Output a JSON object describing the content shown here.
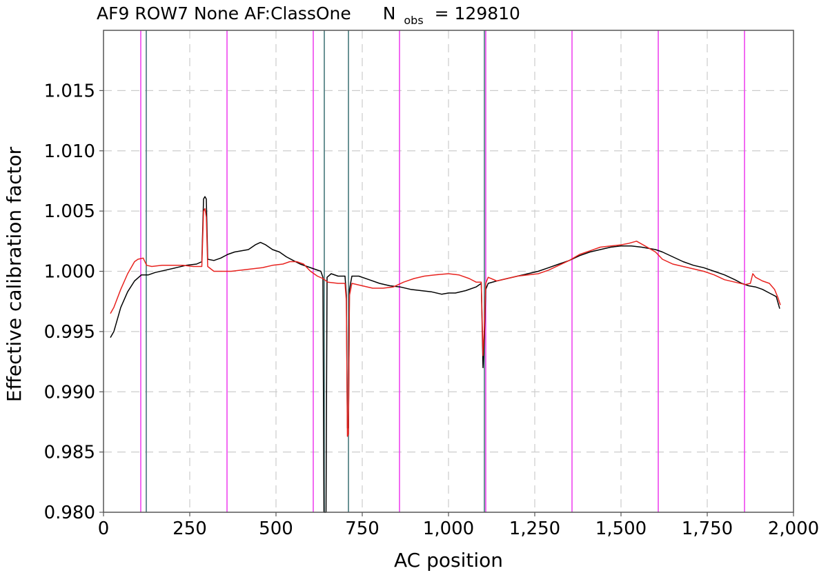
{
  "chart_data": {
    "type": "line",
    "title": "AF9 ROW7 None AF:ClassOne",
    "nobs_symbol": "N",
    "nobs_subscript": "obs",
    "nobs_equals": "= 129810",
    "xlabel": "AC position",
    "ylabel": "Effective calibration factor",
    "xlim": [
      0,
      2000
    ],
    "ylim": [
      0.98,
      1.02
    ],
    "x_ticks": [
      0,
      250,
      500,
      750,
      1000,
      1250,
      1500,
      1750,
      2000
    ],
    "x_tick_labels": [
      "0",
      "250",
      "500",
      "750",
      "1,000",
      "1,250",
      "1,500",
      "1,750",
      "2,000"
    ],
    "y_ticks": [
      0.98,
      0.985,
      0.99,
      0.995,
      1.0,
      1.005,
      1.01,
      1.015
    ],
    "y_tick_labels": [
      "0.980",
      "0.985",
      "0.990",
      "0.995",
      "1.000",
      "1.005",
      "1.010",
      "1.015"
    ],
    "grid": true,
    "legend": false,
    "vertical_lines": {
      "magenta": {
        "color": "#ee44ee",
        "x": [
          108,
          358,
          608,
          858,
          1108,
          1358,
          1608,
          1858
        ]
      },
      "teal": {
        "color": "#44777a",
        "x": [
          124,
          640,
          710,
          1104
        ]
      }
    },
    "series": [
      {
        "color": "#000000",
        "points": [
          [
            20,
            0.9945
          ],
          [
            30,
            0.995
          ],
          [
            50,
            0.997
          ],
          [
            70,
            0.9983
          ],
          [
            90,
            0.9992
          ],
          [
            110,
            0.9997
          ],
          [
            130,
            0.9997
          ],
          [
            150,
            0.9999
          ],
          [
            180,
            1.0001
          ],
          [
            210,
            1.0003
          ],
          [
            240,
            1.0005
          ],
          [
            270,
            1.0006
          ],
          [
            285,
            1.0008
          ],
          [
            290,
            1.006
          ],
          [
            294,
            1.0062
          ],
          [
            298,
            1.006
          ],
          [
            302,
            1.001
          ],
          [
            320,
            1.0009
          ],
          [
            340,
            1.0011
          ],
          [
            360,
            1.0014
          ],
          [
            380,
            1.0016
          ],
          [
            400,
            1.0017
          ],
          [
            420,
            1.0018
          ],
          [
            440,
            1.0022
          ],
          [
            455,
            1.0024
          ],
          [
            470,
            1.0022
          ],
          [
            490,
            1.0018
          ],
          [
            510,
            1.0016
          ],
          [
            530,
            1.0012
          ],
          [
            550,
            1.0009
          ],
          [
            570,
            1.0006
          ],
          [
            590,
            1.0004
          ],
          [
            610,
            1.0002
          ],
          [
            630,
            1.0
          ],
          [
            636,
            0.9995
          ],
          [
            639,
            0.98
          ],
          [
            645,
            0.98
          ],
          [
            648,
            0.9995
          ],
          [
            660,
            0.9998
          ],
          [
            680,
            0.9996
          ],
          [
            700,
            0.9996
          ],
          [
            704,
            0.998
          ],
          [
            707,
            0.987
          ],
          [
            710,
            0.987
          ],
          [
            713,
            0.9985
          ],
          [
            720,
            0.9996
          ],
          [
            740,
            0.9996
          ],
          [
            770,
            0.9993
          ],
          [
            800,
            0.999
          ],
          [
            830,
            0.9988
          ],
          [
            860,
            0.9987
          ],
          [
            890,
            0.9985
          ],
          [
            920,
            0.9984
          ],
          [
            950,
            0.9983
          ],
          [
            980,
            0.9981
          ],
          [
            1000,
            0.9982
          ],
          [
            1020,
            0.9982
          ],
          [
            1050,
            0.9984
          ],
          [
            1080,
            0.9987
          ],
          [
            1095,
            0.999
          ],
          [
            1100,
            0.992
          ],
          [
            1104,
            0.9945
          ],
          [
            1108,
            0.9985
          ],
          [
            1115,
            0.999
          ],
          [
            1140,
            0.9992
          ],
          [
            1170,
            0.9994
          ],
          [
            1200,
            0.9996
          ],
          [
            1230,
            0.9998
          ],
          [
            1260,
            1.0
          ],
          [
            1290,
            1.0003
          ],
          [
            1320,
            1.0006
          ],
          [
            1350,
            1.0009
          ],
          [
            1380,
            1.0013
          ],
          [
            1410,
            1.0016
          ],
          [
            1440,
            1.0018
          ],
          [
            1470,
            1.002
          ],
          [
            1500,
            1.0021
          ],
          [
            1530,
            1.0021
          ],
          [
            1560,
            1.002
          ],
          [
            1580,
            1.0019
          ],
          [
            1600,
            1.0018
          ],
          [
            1620,
            1.0016
          ],
          [
            1650,
            1.0012
          ],
          [
            1680,
            1.0008
          ],
          [
            1710,
            1.0005
          ],
          [
            1740,
            1.0003
          ],
          [
            1770,
            1.0
          ],
          [
            1800,
            0.9997
          ],
          [
            1830,
            0.9993
          ],
          [
            1850,
            0.999
          ],
          [
            1870,
            0.9988
          ],
          [
            1890,
            0.9987
          ],
          [
            1910,
            0.9985
          ],
          [
            1930,
            0.9982
          ],
          [
            1950,
            0.9979
          ],
          [
            1960,
            0.9969
          ]
        ]
      },
      {
        "color": "#e8221e",
        "points": [
          [
            20,
            0.9965
          ],
          [
            30,
            0.997
          ],
          [
            50,
            0.9985
          ],
          [
            70,
            0.9998
          ],
          [
            90,
            1.0008
          ],
          [
            100,
            1.001
          ],
          [
            115,
            1.0011
          ],
          [
            125,
            1.0005
          ],
          [
            140,
            1.0004
          ],
          [
            170,
            1.0005
          ],
          [
            200,
            1.0005
          ],
          [
            230,
            1.0005
          ],
          [
            260,
            1.0004
          ],
          [
            285,
            1.0004
          ],
          [
            290,
            1.005
          ],
          [
            294,
            1.0052
          ],
          [
            298,
            1.0045
          ],
          [
            302,
            1.0004
          ],
          [
            320,
            1.0
          ],
          [
            345,
            1.0
          ],
          [
            370,
            1.0
          ],
          [
            400,
            1.0001
          ],
          [
            430,
            1.0002
          ],
          [
            460,
            1.0003
          ],
          [
            490,
            1.0005
          ],
          [
            520,
            1.0006
          ],
          [
            540,
            1.0008
          ],
          [
            560,
            1.0008
          ],
          [
            580,
            1.0006
          ],
          [
            600,
            1.0
          ],
          [
            620,
            0.9996
          ],
          [
            636,
            0.9994
          ],
          [
            650,
            0.9991
          ],
          [
            680,
            0.999
          ],
          [
            700,
            0.999
          ],
          [
            704,
            0.9975
          ],
          [
            707,
            0.9863
          ],
          [
            710,
            0.9865
          ],
          [
            713,
            0.998
          ],
          [
            720,
            0.999
          ],
          [
            750,
            0.9988
          ],
          [
            780,
            0.9986
          ],
          [
            810,
            0.9986
          ],
          [
            840,
            0.9987
          ],
          [
            870,
            0.9991
          ],
          [
            900,
            0.9994
          ],
          [
            930,
            0.9996
          ],
          [
            960,
            0.9997
          ],
          [
            1000,
            0.9998
          ],
          [
            1030,
            0.9997
          ],
          [
            1060,
            0.9994
          ],
          [
            1080,
            0.9991
          ],
          [
            1095,
            0.9991
          ],
          [
            1100,
            0.993
          ],
          [
            1104,
            0.9955
          ],
          [
            1108,
            0.999
          ],
          [
            1115,
            0.9995
          ],
          [
            1140,
            0.9992
          ],
          [
            1170,
            0.9994
          ],
          [
            1200,
            0.9996
          ],
          [
            1230,
            0.9997
          ],
          [
            1260,
            0.9998
          ],
          [
            1290,
            1.0001
          ],
          [
            1320,
            1.0005
          ],
          [
            1350,
            1.0009
          ],
          [
            1380,
            1.0014
          ],
          [
            1410,
            1.0017
          ],
          [
            1440,
            1.002
          ],
          [
            1470,
            1.0021
          ],
          [
            1500,
            1.0022
          ],
          [
            1520,
            1.0023
          ],
          [
            1545,
            1.0025
          ],
          [
            1570,
            1.0021
          ],
          [
            1600,
            1.0016
          ],
          [
            1620,
            1.001
          ],
          [
            1650,
            1.0006
          ],
          [
            1680,
            1.0004
          ],
          [
            1710,
            1.0002
          ],
          [
            1740,
            1.0
          ],
          [
            1770,
            0.9997
          ],
          [
            1800,
            0.9993
          ],
          [
            1830,
            0.9991
          ],
          [
            1860,
            0.9989
          ],
          [
            1875,
            0.999
          ],
          [
            1882,
            0.9998
          ],
          [
            1890,
            0.9995
          ],
          [
            1910,
            0.9992
          ],
          [
            1930,
            0.999
          ],
          [
            1945,
            0.9985
          ],
          [
            1955,
            0.9978
          ],
          [
            1962,
            0.9972
          ]
        ]
      }
    ]
  }
}
